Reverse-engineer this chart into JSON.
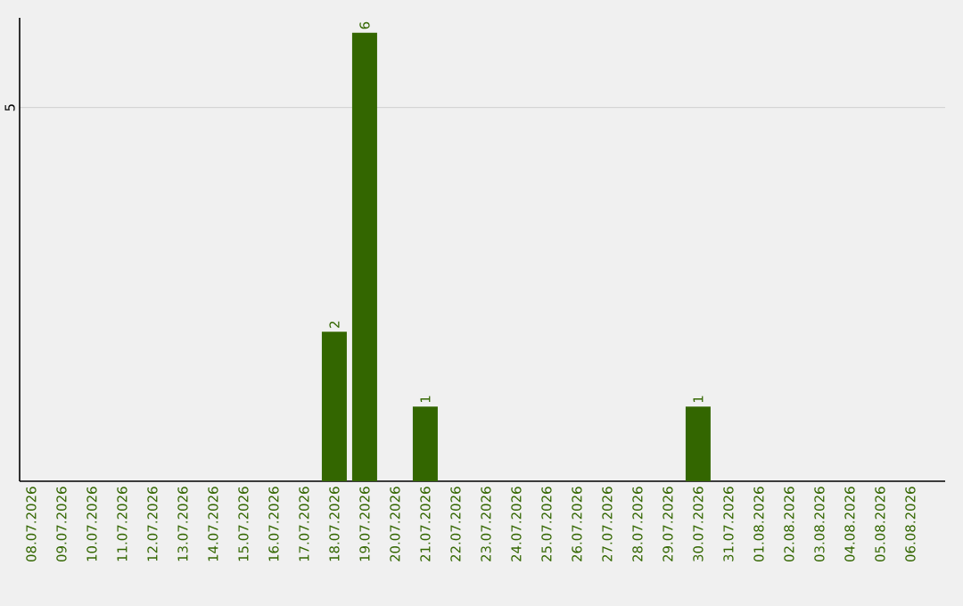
{
  "chart_data": {
    "type": "bar",
    "categories": [
      "08.07.2026",
      "09.07.2026",
      "10.07.2026",
      "11.07.2026",
      "12.07.2026",
      "13.07.2026",
      "14.07.2026",
      "15.07.2026",
      "16.07.2026",
      "17.07.2026",
      "18.07.2026",
      "19.07.2026",
      "20.07.2026",
      "21.07.2026",
      "22.07.2026",
      "23.07.2026",
      "24.07.2026",
      "25.07.2026",
      "26.07.2026",
      "27.07.2026",
      "28.07.2026",
      "29.07.2026",
      "30.07.2026",
      "31.07.2026",
      "01.08.2026",
      "02.08.2026",
      "03.08.2026",
      "04.08.2026",
      "05.08.2026",
      "06.08.2026"
    ],
    "values": [
      0,
      0,
      0,
      0,
      0,
      0,
      0,
      0,
      0,
      0,
      2,
      6,
      0,
      1,
      0,
      0,
      0,
      0,
      0,
      0,
      0,
      0,
      1,
      0,
      0,
      0,
      0,
      0,
      0,
      0
    ],
    "value_labels": [
      null,
      null,
      null,
      null,
      null,
      null,
      null,
      null,
      null,
      null,
      "2",
      "6",
      null,
      "1",
      null,
      null,
      null,
      null,
      null,
      null,
      null,
      null,
      "1",
      null,
      null,
      null,
      null,
      null,
      null,
      null
    ],
    "color": "#336600",
    "ylim": [
      0,
      6.2
    ],
    "yticks": [
      5
    ],
    "grid": "y"
  }
}
